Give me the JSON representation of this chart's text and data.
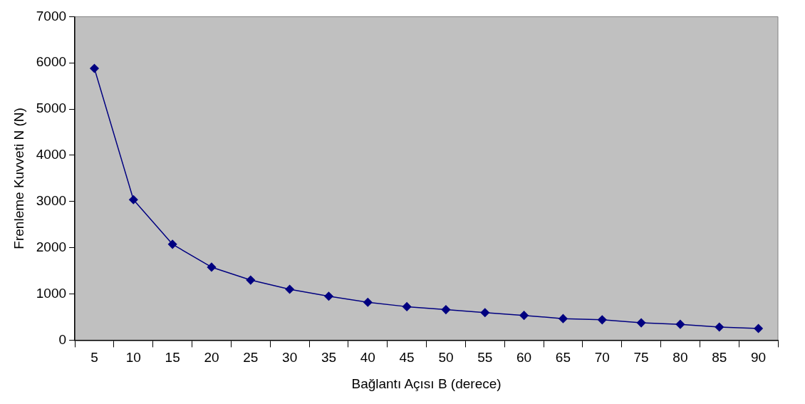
{
  "chart_data": {
    "type": "line",
    "xlabel": "Bağlantı Açısı B (derece)",
    "ylabel": "Frenleme Kuvveti N (N)",
    "categories": [
      "5",
      "10",
      "15",
      "20",
      "25",
      "30",
      "35",
      "40",
      "45",
      "50",
      "55",
      "60",
      "65",
      "70",
      "75",
      "80",
      "85",
      "90"
    ],
    "series": [
      {
        "color": "#000080",
        "values": [
          5880,
          3040,
          2075,
          1580,
          1300,
          1100,
          950,
          820,
          725,
          660,
          595,
          536,
          466,
          440,
          375,
          343,
          284,
          252
        ]
      }
    ],
    "ylim": [
      0,
      7000
    ],
    "yticks": [
      0,
      1000,
      2000,
      3000,
      4000,
      5000,
      6000,
      7000
    ],
    "grid": false,
    "legend": false,
    "marker": "diamond",
    "line_style": "solid"
  }
}
